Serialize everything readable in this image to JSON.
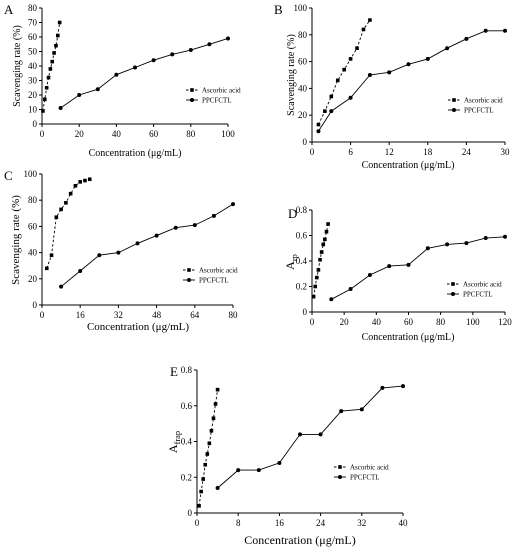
{
  "figure": {
    "panel_labels": [
      "A",
      "B",
      "C",
      "D",
      "E"
    ],
    "legend_labels": [
      "Ascorbic acid",
      "PPCFCTL"
    ],
    "colors": {
      "ink": "#000000",
      "background": "#ffffff"
    }
  },
  "chart_data": [
    {
      "panel": "A",
      "type": "scatter",
      "xlabel": "Concentration (μg/mL)",
      "ylabel": "Scavenging rate (%)",
      "xlim": [
        0,
        100
      ],
      "ylim": [
        0,
        80
      ],
      "xticks": [
        0,
        20,
        40,
        60,
        80,
        100
      ],
      "yticks": [
        0,
        10,
        20,
        30,
        40,
        50,
        60,
        70,
        80
      ],
      "legend_position": "center-right",
      "series": [
        {
          "name": "Ascorbic acid",
          "line": "dashed",
          "x": [
            0.5,
            1.5,
            2.5,
            3.5,
            4.5,
            5.5,
            6.5,
            7.5,
            8.5,
            9.5
          ],
          "y": [
            9,
            17,
            25,
            32,
            38,
            43,
            49,
            54,
            61,
            70
          ]
        },
        {
          "name": "PPCFCTL",
          "line": "solid",
          "x": [
            10,
            20,
            30,
            40,
            50,
            60,
            70,
            80,
            90,
            100
          ],
          "y": [
            11,
            20,
            24,
            34,
            39,
            44,
            48,
            51,
            55,
            59
          ]
        }
      ]
    },
    {
      "panel": "B",
      "type": "scatter",
      "xlabel": "Concentration (μg/mL)",
      "ylabel": "Scavenging rate (%)",
      "xlim": [
        0,
        30
      ],
      "ylim": [
        0,
        100
      ],
      "xticks": [
        0,
        6,
        12,
        18,
        24,
        30
      ],
      "yticks": [
        0,
        20,
        40,
        60,
        80,
        100
      ],
      "legend_position": "center-right",
      "series": [
        {
          "name": "Ascorbic acid",
          "line": "dashed",
          "x": [
            1,
            2,
            3,
            4,
            5,
            6,
            7,
            8,
            9
          ],
          "y": [
            13,
            23,
            34,
            46,
            54,
            62,
            70,
            84,
            91
          ]
        },
        {
          "name": "PPCFCTL",
          "line": "solid",
          "x": [
            1,
            3,
            6,
            9,
            12,
            15,
            18,
            21,
            24,
            27,
            30
          ],
          "y": [
            8,
            23,
            33,
            50,
            52,
            58,
            62,
            70,
            77,
            83,
            83
          ]
        }
      ]
    },
    {
      "panel": "C",
      "type": "scatter",
      "xlabel": "Concentration (μg/mL)",
      "ylabel": "Scavenging rate (%)",
      "xlim": [
        0,
        80
      ],
      "ylim": [
        0,
        100
      ],
      "xticks": [
        0,
        16,
        32,
        48,
        64,
        80
      ],
      "yticks": [
        0,
        20,
        40,
        60,
        80,
        100
      ],
      "legend_position": "bottom-center",
      "series": [
        {
          "name": "Ascorbic acid",
          "line": "dashed",
          "x": [
            2,
            4,
            6,
            8,
            10,
            12,
            14,
            16,
            18,
            20
          ],
          "y": [
            28,
            38,
            67,
            73,
            78,
            85,
            91,
            94,
            95,
            96
          ]
        },
        {
          "name": "PPCFCTL",
          "line": "solid",
          "x": [
            8,
            16,
            24,
            32,
            40,
            48,
            56,
            64,
            72,
            80
          ],
          "y": [
            14,
            26,
            38,
            40,
            47,
            53,
            59,
            61,
            68,
            77
          ]
        }
      ]
    },
    {
      "panel": "D",
      "type": "scatter",
      "xlabel": "Concentration (μg/mL)",
      "ylabel": "A",
      "ylabel_sub": "rp",
      "xlim": [
        0,
        120
      ],
      "ylim": [
        0,
        0.8
      ],
      "xticks": [
        0,
        20,
        40,
        60,
        80,
        100,
        120
      ],
      "yticks": [
        0,
        0.2,
        0.4,
        0.6,
        0.8
      ],
      "legend_position": "center-right",
      "series": [
        {
          "name": "Ascorbic acid",
          "line": "dashed",
          "x": [
            1,
            2,
            3,
            4,
            5,
            6,
            7,
            8,
            9,
            10
          ],
          "y": [
            0.12,
            0.2,
            0.27,
            0.33,
            0.41,
            0.47,
            0.53,
            0.57,
            0.63,
            0.69
          ]
        },
        {
          "name": "PPCFCTL",
          "line": "solid",
          "x": [
            12,
            24,
            36,
            48,
            60,
            72,
            84,
            96,
            108,
            120
          ],
          "y": [
            0.1,
            0.18,
            0.29,
            0.36,
            0.37,
            0.5,
            0.53,
            0.54,
            0.58,
            0.59
          ]
        }
      ]
    },
    {
      "panel": "E",
      "type": "scatter",
      "xlabel": "Concentration (μg/mL)",
      "ylabel": "A",
      "ylabel_sub": "frap",
      "xlim": [
        0,
        40
      ],
      "ylim": [
        0,
        0.8
      ],
      "xticks": [
        0,
        8,
        16,
        24,
        32,
        40
      ],
      "yticks": [
        0,
        0.2,
        0.4,
        0.6,
        0.8
      ],
      "legend_position": "center",
      "series": [
        {
          "name": "Ascorbic acid",
          "line": "dashed",
          "x": [
            0.4,
            0.8,
            1.2,
            1.6,
            2.0,
            2.4,
            2.8,
            3.2,
            3.6,
            4.0
          ],
          "y": [
            0.04,
            0.12,
            0.19,
            0.27,
            0.33,
            0.39,
            0.46,
            0.53,
            0.61,
            0.69
          ]
        },
        {
          "name": "PPCFCTL",
          "line": "solid",
          "x": [
            4,
            8,
            12,
            16,
            20,
            24,
            28,
            32,
            36,
            40
          ],
          "y": [
            0.14,
            0.24,
            0.24,
            0.28,
            0.44,
            0.44,
            0.57,
            0.58,
            0.7,
            0.71
          ]
        }
      ]
    }
  ]
}
